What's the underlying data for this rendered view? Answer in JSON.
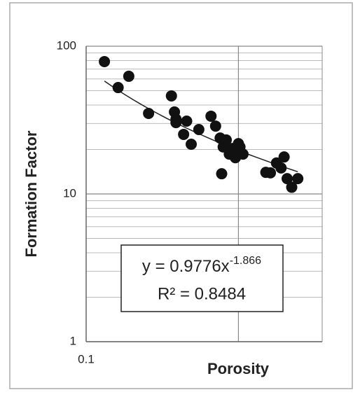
{
  "chart_data": {
    "type": "scatter",
    "x_label": "Porosity",
    "y_label": "Formation Factor",
    "x": [
      0.112,
      0.121,
      0.128,
      0.141,
      0.156,
      0.158,
      0.159,
      0.159,
      0.164,
      0.166,
      0.169,
      0.174,
      0.182,
      0.185,
      0.188,
      0.189,
      0.19,
      0.192,
      0.194,
      0.196,
      0.198,
      0.199,
      0.2,
      0.201,
      0.203,
      0.218,
      0.221,
      0.225,
      0.228,
      0.23,
      0.232,
      0.235,
      0.239
    ],
    "values": [
      78.7,
      52.5,
      62.6,
      35.1,
      46.1,
      35.9,
      32.1,
      30.4,
      25.3,
      31.1,
      21.7,
      27.3,
      33.6,
      28.8,
      23.9,
      13.7,
      20.8,
      23.2,
      18.6,
      20.3,
      17.6,
      19.7,
      21.9,
      20.8,
      18.6,
      14.0,
      13.9,
      16.2,
      15.0,
      17.8,
      12.7,
      11.1,
      12.7
    ],
    "color": "#111111",
    "xlim": [
      0.1,
      0.255
    ],
    "xticks": [
      0.1
    ],
    "x_grid_lines": [
      0.2
    ],
    "ylim": [
      1,
      100
    ],
    "yticks": [
      1,
      10,
      100
    ],
    "y_log": true,
    "grid": true,
    "trendline": {
      "coefficient": 0.9776,
      "exponent": -1.866,
      "x_range": [
        0.112,
        0.239
      ]
    },
    "equation": {
      "prefix": "y = 0.9776x",
      "exponent_label": "-1.866",
      "r_squared": "R² = 0.8484"
    }
  }
}
